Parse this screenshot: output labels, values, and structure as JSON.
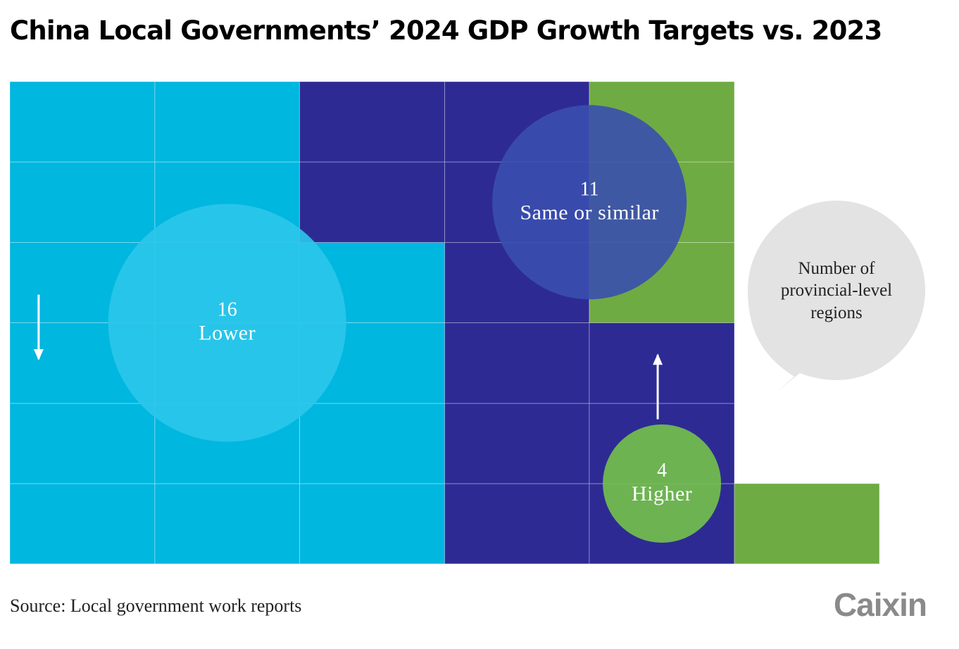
{
  "title": "China Local Governments’ 2024 GDP Growth Targets vs. 2023",
  "source": "Source: Local government work reports",
  "logo": "Caixin",
  "colors": {
    "lower": "#00b7df",
    "same": "#2e2a94",
    "higher": "#6fab43",
    "lower_circle": "#2bc6ea",
    "same_circle": "#3a4fae",
    "higher_circle": "#74c24a",
    "bubble": "#e3e3e3"
  },
  "chart_data": {
    "type": "waffle",
    "title": "China Local Governments’ 2024 GDP Growth Targets vs. 2023",
    "unit_label": "Number of provincial-level regions",
    "total": 31,
    "categories": [
      {
        "key": "lower",
        "name": "Lower",
        "value": 16,
        "arrow": "down"
      },
      {
        "key": "same",
        "name": "Same or similar",
        "value": 11,
        "arrow": "none"
      },
      {
        "key": "higher",
        "name": "Higher",
        "value": 4,
        "arrow": "up"
      }
    ]
  }
}
